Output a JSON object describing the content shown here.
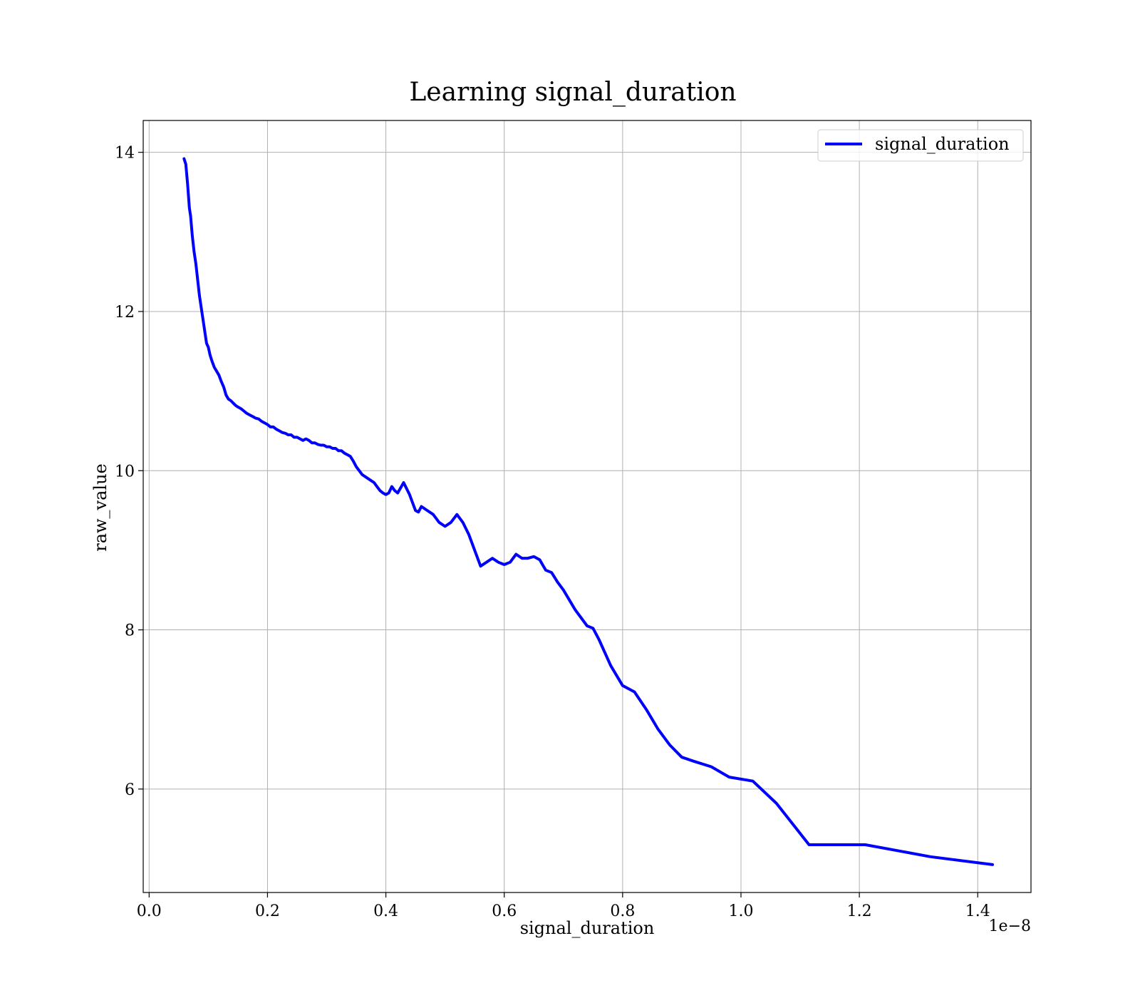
{
  "chart_data": {
    "type": "line",
    "title": "Learning signal_duration",
    "xlabel": "signal_duration",
    "ylabel": "raw_value",
    "x_offset_text": "1e−8",
    "xlim": [
      -0.1,
      14.9
    ],
    "ylim": [
      4.7,
      14.4
    ],
    "xticks": [
      0.0,
      2.0,
      4.0,
      6.0,
      8.0,
      10.0,
      12.0,
      14.0
    ],
    "xtick_labels": [
      "0.0",
      "0.2",
      "0.4",
      "0.6",
      "0.8",
      "1.0",
      "1.2",
      "1.4"
    ],
    "yticks": [
      6,
      8,
      10,
      12,
      14
    ],
    "ytick_labels": [
      "6",
      "8",
      "10",
      "12",
      "14"
    ],
    "grid": true,
    "legend_position": "top-right",
    "series": [
      {
        "name": "signal_duration",
        "color": "#0000ff",
        "x": [
          0.59,
          0.62,
          0.65,
          0.68,
          0.7,
          0.73,
          0.76,
          0.79,
          0.82,
          0.85,
          0.88,
          0.91,
          0.94,
          0.97,
          1.0,
          1.03,
          1.06,
          1.1,
          1.14,
          1.18,
          1.22,
          1.26,
          1.3,
          1.34,
          1.38,
          1.42,
          1.46,
          1.5,
          1.55,
          1.6,
          1.65,
          1.7,
          1.75,
          1.8,
          1.85,
          1.9,
          1.95,
          2.0,
          2.05,
          2.1,
          2.15,
          2.2,
          2.25,
          2.3,
          2.35,
          2.4,
          2.45,
          2.5,
          2.55,
          2.6,
          2.65,
          2.7,
          2.75,
          2.8,
          2.85,
          2.9,
          2.95,
          3.0,
          3.05,
          3.1,
          3.15,
          3.2,
          3.25,
          3.3,
          3.35,
          3.4,
          3.45,
          3.5,
          3.55,
          3.6,
          3.7,
          3.8,
          3.85,
          3.9,
          3.95,
          4.0,
          4.05,
          4.1,
          4.15,
          4.2,
          4.3,
          4.4,
          4.5,
          4.55,
          4.6,
          4.7,
          4.8,
          4.9,
          5.0,
          5.1,
          5.2,
          5.3,
          5.4,
          5.5,
          5.6,
          5.7,
          5.8,
          5.9,
          6.0,
          6.1,
          6.2,
          6.3,
          6.4,
          6.5,
          6.6,
          6.7,
          6.8,
          6.9,
          7.0,
          7.2,
          7.4,
          7.5,
          7.6,
          7.8,
          8.0,
          8.2,
          8.4,
          8.6,
          8.8,
          9.0,
          9.2,
          9.5,
          9.8,
          10.2,
          10.6,
          11.15,
          12.1,
          13.2,
          14.25
        ],
        "y": [
          13.92,
          13.85,
          13.6,
          13.3,
          13.2,
          12.95,
          12.75,
          12.6,
          12.4,
          12.2,
          12.05,
          11.9,
          11.75,
          11.6,
          11.55,
          11.45,
          11.38,
          11.3,
          11.25,
          11.2,
          11.12,
          11.05,
          10.95,
          10.9,
          10.88,
          10.85,
          10.82,
          10.8,
          10.78,
          10.75,
          10.72,
          10.7,
          10.68,
          10.66,
          10.65,
          10.62,
          10.6,
          10.58,
          10.55,
          10.55,
          10.52,
          10.5,
          10.48,
          10.47,
          10.45,
          10.45,
          10.42,
          10.42,
          10.4,
          10.38,
          10.4,
          10.38,
          10.35,
          10.35,
          10.33,
          10.32,
          10.32,
          10.3,
          10.3,
          10.28,
          10.28,
          10.25,
          10.25,
          10.22,
          10.2,
          10.18,
          10.12,
          10.05,
          10.0,
          9.95,
          9.9,
          9.85,
          9.8,
          9.75,
          9.72,
          9.7,
          9.72,
          9.8,
          9.75,
          9.72,
          9.85,
          9.7,
          9.5,
          9.48,
          9.55,
          9.5,
          9.45,
          9.35,
          9.3,
          9.35,
          9.45,
          9.35,
          9.2,
          9.0,
          8.8,
          8.85,
          8.9,
          8.85,
          8.82,
          8.85,
          8.95,
          8.9,
          8.9,
          8.92,
          8.88,
          8.75,
          8.72,
          8.6,
          8.5,
          8.25,
          8.05,
          8.02,
          7.88,
          7.55,
          7.3,
          7.22,
          7.0,
          6.75,
          6.55,
          6.4,
          6.35,
          6.28,
          6.15,
          6.1,
          5.82,
          5.3,
          5.3,
          5.15,
          5.05
        ]
      }
    ]
  }
}
